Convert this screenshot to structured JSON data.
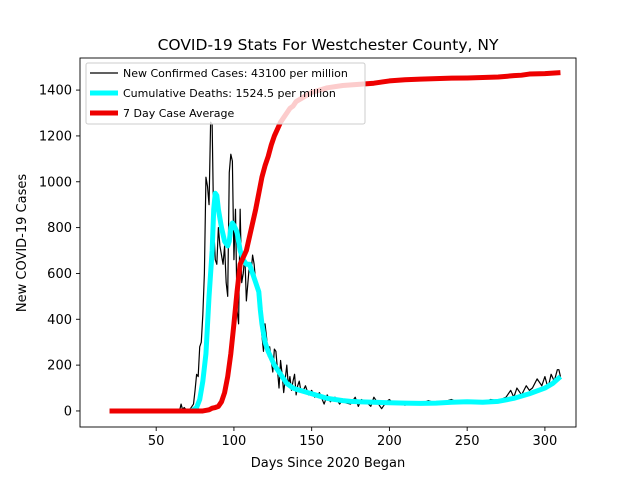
{
  "chart_data": {
    "type": "line",
    "title": "COVID-19 Stats For Westchester County, NY",
    "xlabel": "Days Since 2020 Began",
    "ylabel": "New COVID-19 Cases",
    "xlim": [
      1,
      320
    ],
    "ylim": [
      -70,
      1540
    ],
    "xticks": [
      50,
      100,
      150,
      200,
      250,
      300
    ],
    "yticks": [
      0,
      200,
      400,
      600,
      800,
      1000,
      1200,
      1400
    ],
    "grid": false,
    "legend_position": "top-left",
    "series": [
      {
        "name": "New Confirmed Cases: 43100 per million",
        "color": "#000000",
        "points": [
          [
            20,
            0
          ],
          [
            60,
            0
          ],
          [
            65,
            0
          ],
          [
            66,
            30
          ],
          [
            67,
            5
          ],
          [
            68,
            15
          ],
          [
            70,
            0
          ],
          [
            72,
            10
          ],
          [
            74,
            30
          ],
          [
            75,
            90
          ],
          [
            76,
            160
          ],
          [
            77,
            150
          ],
          [
            78,
            280
          ],
          [
            79,
            300
          ],
          [
            80,
            420
          ],
          [
            81,
            600
          ],
          [
            82,
            1020
          ],
          [
            83,
            980
          ],
          [
            84,
            900
          ],
          [
            85,
            1260
          ],
          [
            86,
            1250
          ],
          [
            87,
            800
          ],
          [
            88,
            660
          ],
          [
            89,
            640
          ],
          [
            90,
            800
          ],
          [
            91,
            720
          ],
          [
            92,
            680
          ],
          [
            93,
            640
          ],
          [
            94,
            720
          ],
          [
            95,
            560
          ],
          [
            96,
            500
          ],
          [
            97,
            1040
          ],
          [
            98,
            1120
          ],
          [
            99,
            1090
          ],
          [
            100,
            660
          ],
          [
            101,
            880
          ],
          [
            102,
            440
          ],
          [
            103,
            380
          ],
          [
            104,
            880
          ],
          [
            105,
            560
          ],
          [
            106,
            600
          ],
          [
            107,
            680
          ],
          [
            108,
            480
          ],
          [
            109,
            560
          ],
          [
            110,
            640
          ],
          [
            111,
            600
          ],
          [
            112,
            680
          ],
          [
            113,
            640
          ],
          [
            114,
            560
          ],
          [
            115,
            520
          ],
          [
            116,
            440
          ],
          [
            117,
            400
          ],
          [
            118,
            330
          ],
          [
            119,
            260
          ],
          [
            120,
            380
          ],
          [
            121,
            320
          ],
          [
            122,
            240
          ],
          [
            123,
            280
          ],
          [
            124,
            220
          ],
          [
            125,
            170
          ],
          [
            126,
            270
          ],
          [
            127,
            260
          ],
          [
            128,
            180
          ],
          [
            129,
            100
          ],
          [
            130,
            220
          ],
          [
            131,
            160
          ],
          [
            132,
            80
          ],
          [
            133,
            140
          ],
          [
            134,
            200
          ],
          [
            135,
            110
          ],
          [
            136,
            150
          ],
          [
            137,
            90
          ],
          [
            138,
            130
          ],
          [
            139,
            160
          ],
          [
            140,
            70
          ],
          [
            141,
            110
          ],
          [
            142,
            130
          ],
          [
            143,
            90
          ],
          [
            144,
            80
          ],
          [
            146,
            110
          ],
          [
            148,
            70
          ],
          [
            150,
            90
          ],
          [
            152,
            60
          ],
          [
            155,
            80
          ],
          [
            158,
            30
          ],
          [
            160,
            70
          ],
          [
            162,
            40
          ],
          [
            165,
            60
          ],
          [
            168,
            30
          ],
          [
            170,
            50
          ],
          [
            172,
            35
          ],
          [
            175,
            30
          ],
          [
            178,
            60
          ],
          [
            180,
            20
          ],
          [
            182,
            50
          ],
          [
            185,
            40
          ],
          [
            188,
            20
          ],
          [
            190,
            60
          ],
          [
            192,
            40
          ],
          [
            195,
            10
          ],
          [
            198,
            40
          ],
          [
            200,
            50
          ],
          [
            203,
            30
          ],
          [
            205,
            40
          ],
          [
            208,
            35
          ],
          [
            210,
            25
          ],
          [
            215,
            40
          ],
          [
            220,
            30
          ],
          [
            225,
            45
          ],
          [
            230,
            35
          ],
          [
            235,
            40
          ],
          [
            240,
            50
          ],
          [
            245,
            35
          ],
          [
            250,
            45
          ],
          [
            255,
            40
          ],
          [
            260,
            35
          ],
          [
            265,
            50
          ],
          [
            270,
            45
          ],
          [
            275,
            60
          ],
          [
            278,
            90
          ],
          [
            280,
            60
          ],
          [
            282,
            100
          ],
          [
            285,
            70
          ],
          [
            288,
            110
          ],
          [
            290,
            90
          ],
          [
            292,
            100
          ],
          [
            295,
            140
          ],
          [
            298,
            110
          ],
          [
            300,
            150
          ],
          [
            302,
            100
          ],
          [
            304,
            160
          ],
          [
            306,
            130
          ],
          [
            308,
            180
          ],
          [
            309,
            180
          ],
          [
            310,
            150
          ]
        ]
      },
      {
        "name": "Cumulative Deaths: 1524.5 per million",
        "color": "#00ffff",
        "points": [
          [
            20,
            0
          ],
          [
            72,
            0
          ],
          [
            74,
            5
          ],
          [
            76,
            15
          ],
          [
            78,
            50
          ],
          [
            80,
            130
          ],
          [
            82,
            250
          ],
          [
            84,
            500
          ],
          [
            86,
            700
          ],
          [
            87,
            880
          ],
          [
            88,
            950
          ],
          [
            89,
            940
          ],
          [
            90,
            880
          ],
          [
            92,
            800
          ],
          [
            94,
            740
          ],
          [
            96,
            720
          ],
          [
            97,
            740
          ],
          [
            98,
            800
          ],
          [
            99,
            820
          ],
          [
            100,
            810
          ],
          [
            102,
            780
          ],
          [
            104,
            700
          ],
          [
            106,
            660
          ],
          [
            108,
            640
          ],
          [
            110,
            640
          ],
          [
            112,
            600
          ],
          [
            114,
            560
          ],
          [
            116,
            520
          ],
          [
            117,
            440
          ],
          [
            118,
            380
          ],
          [
            119,
            340
          ],
          [
            120,
            300
          ],
          [
            122,
            260
          ],
          [
            124,
            230
          ],
          [
            126,
            200
          ],
          [
            128,
            180
          ],
          [
            130,
            160
          ],
          [
            132,
            140
          ],
          [
            134,
            120
          ],
          [
            136,
            110
          ],
          [
            138,
            100
          ],
          [
            140,
            95
          ],
          [
            145,
            85
          ],
          [
            150,
            75
          ],
          [
            155,
            65
          ],
          [
            160,
            55
          ],
          [
            165,
            50
          ],
          [
            170,
            45
          ],
          [
            175,
            42
          ],
          [
            180,
            40
          ],
          [
            190,
            38
          ],
          [
            200,
            36
          ],
          [
            210,
            34
          ],
          [
            220,
            33
          ],
          [
            230,
            34
          ],
          [
            240,
            38
          ],
          [
            250,
            40
          ],
          [
            260,
            38
          ],
          [
            270,
            42
          ],
          [
            280,
            55
          ],
          [
            290,
            75
          ],
          [
            300,
            100
          ],
          [
            305,
            120
          ],
          [
            310,
            150
          ]
        ]
      },
      {
        "name": "7 Day Case Average",
        "color": "#ee0000",
        "points": [
          [
            20,
            0
          ],
          [
            80,
            0
          ],
          [
            84,
            5
          ],
          [
            86,
            12
          ],
          [
            88,
            15
          ],
          [
            90,
            20
          ],
          [
            92,
            40
          ],
          [
            94,
            80
          ],
          [
            96,
            150
          ],
          [
            98,
            250
          ],
          [
            100,
            380
          ],
          [
            102,
            520
          ],
          [
            104,
            640
          ],
          [
            106,
            670
          ],
          [
            108,
            700
          ],
          [
            110,
            760
          ],
          [
            112,
            820
          ],
          [
            114,
            880
          ],
          [
            116,
            950
          ],
          [
            118,
            1020
          ],
          [
            120,
            1070
          ],
          [
            122,
            1110
          ],
          [
            124,
            1160
          ],
          [
            126,
            1200
          ],
          [
            128,
            1230
          ],
          [
            130,
            1260
          ],
          [
            132,
            1280
          ],
          [
            134,
            1300
          ],
          [
            136,
            1320
          ],
          [
            138,
            1330
          ],
          [
            140,
            1350
          ],
          [
            145,
            1370
          ],
          [
            150,
            1390
          ],
          [
            155,
            1400
          ],
          [
            160,
            1410
          ],
          [
            170,
            1420
          ],
          [
            180,
            1425
          ],
          [
            190,
            1430
          ],
          [
            200,
            1440
          ],
          [
            210,
            1445
          ],
          [
            220,
            1448
          ],
          [
            230,
            1450
          ],
          [
            240,
            1452
          ],
          [
            250,
            1453
          ],
          [
            260,
            1455
          ],
          [
            270,
            1457
          ],
          [
            275,
            1460
          ],
          [
            280,
            1463
          ],
          [
            285,
            1465
          ],
          [
            290,
            1470
          ],
          [
            300,
            1472
          ],
          [
            305,
            1474
          ],
          [
            310,
            1476
          ]
        ]
      }
    ]
  }
}
